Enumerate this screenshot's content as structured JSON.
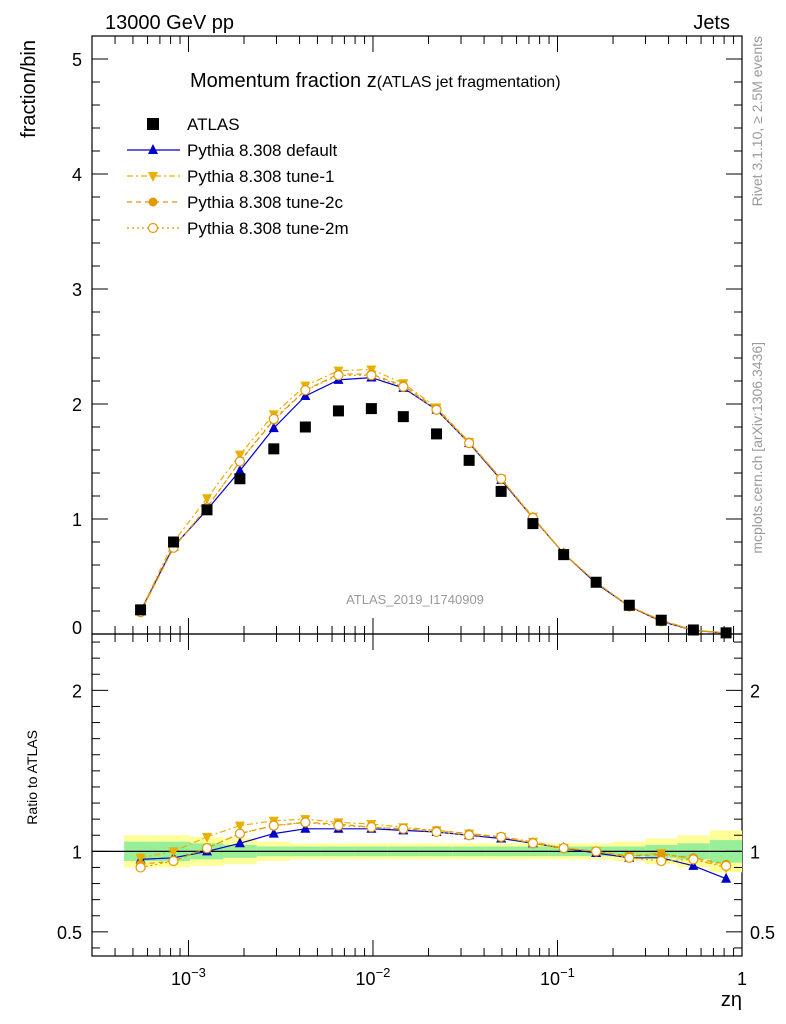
{
  "header": {
    "left": "13000 GeV pp",
    "right": "Jets"
  },
  "side_text": {
    "rivet": "Rivet 3.1.10, ≥ 2.5M events",
    "mcplots": "mcplots.cern.ch [arXiv:1306.3436]"
  },
  "chart_data": {
    "type": "scatter",
    "title_main": "Momentum fraction z",
    "title_sub": "(ATLAS jet fragmentation)",
    "analysis_label": "ATLAS_2019_I1740909",
    "xlabel": "zη",
    "xscale": "log",
    "xlim": [
      0.0003,
      1
    ],
    "x_tick_labels": [
      "10^-3",
      "10^-2",
      "10^-1",
      "1"
    ],
    "main_panel": {
      "ylabel": "fraction/bin",
      "ylim": [
        0,
        5.2
      ],
      "y_tick_labels": [
        "0",
        "1",
        "2",
        "3",
        "4",
        "5"
      ]
    },
    "ratio_panel": {
      "ylabel": "Ratio to ATLAS",
      "ylim": [
        0.35,
        2.35
      ],
      "y_tick_labels": [
        "0.5",
        "1",
        "2"
      ]
    },
    "x": [
      0.00055,
      0.00083,
      0.00126,
      0.0019,
      0.0029,
      0.0043,
      0.0065,
      0.0098,
      0.0146,
      0.0221,
      0.0332,
      0.0495,
      0.0736,
      0.108,
      0.162,
      0.245,
      0.365,
      0.545,
      0.82
    ],
    "series": [
      {
        "name": "ATLAS",
        "color": "#000000",
        "marker": "square",
        "values": [
          0.21,
          0.8,
          1.08,
          1.35,
          1.61,
          1.8,
          1.94,
          1.96,
          1.89,
          1.74,
          1.51,
          1.24,
          0.96,
          0.69,
          0.45,
          0.25,
          0.12,
          0.035,
          0.01
        ],
        "ratio_band_inner": [
          0.06,
          0.06,
          0.05,
          0.04,
          0.03,
          0.03,
          0.03,
          0.03,
          0.03,
          0.03,
          0.03,
          0.03,
          0.03,
          0.03,
          0.03,
          0.03,
          0.04,
          0.05,
          0.07
        ],
        "ratio_band_outer": [
          0.1,
          0.1,
          0.09,
          0.08,
          0.06,
          0.05,
          0.05,
          0.05,
          0.05,
          0.05,
          0.05,
          0.05,
          0.05,
          0.05,
          0.05,
          0.06,
          0.08,
          0.1,
          0.13
        ]
      },
      {
        "name": "Pythia 8.308 default",
        "color": "#0000cc",
        "marker": "triangle-up",
        "dash": "",
        "values": [
          0.2,
          0.76,
          1.08,
          1.42,
          1.79,
          2.07,
          2.21,
          2.23,
          2.14,
          1.95,
          1.66,
          1.34,
          1.01,
          0.7,
          0.44,
          0.24,
          0.11,
          0.032,
          0.008
        ],
        "ratio": [
          0.95,
          0.96,
          1.0,
          1.05,
          1.11,
          1.14,
          1.14,
          1.14,
          1.13,
          1.12,
          1.1,
          1.08,
          1.05,
          1.02,
          0.99,
          0.96,
          0.96,
          0.91,
          0.83
        ]
      },
      {
        "name": "Pythia 8.308 tune-1",
        "color": "#e8b000",
        "marker": "triangle-down",
        "dash": "6,3,2,3",
        "values": [
          0.2,
          0.8,
          1.18,
          1.56,
          1.91,
          2.16,
          2.29,
          2.3,
          2.18,
          1.97,
          1.67,
          1.35,
          1.02,
          0.7,
          0.45,
          0.24,
          0.12,
          0.033,
          0.009
        ],
        "ratio": [
          0.96,
          1.0,
          1.09,
          1.16,
          1.19,
          1.2,
          1.18,
          1.17,
          1.15,
          1.13,
          1.11,
          1.09,
          1.06,
          1.02,
          1.0,
          0.97,
          0.99,
          0.95,
          0.9
        ]
      },
      {
        "name": "Pythia 8.308 tune-2c",
        "color": "#e39800",
        "marker": "circle",
        "dash": "5,4",
        "values": [
          0.19,
          0.75,
          1.1,
          1.5,
          1.86,
          2.12,
          2.26,
          2.26,
          2.16,
          1.96,
          1.67,
          1.35,
          1.01,
          0.7,
          0.45,
          0.24,
          0.12,
          0.033,
          0.009
        ],
        "ratio": [
          0.92,
          0.94,
          1.02,
          1.11,
          1.16,
          1.18,
          1.17,
          1.15,
          1.14,
          1.13,
          1.11,
          1.09,
          1.05,
          1.02,
          1.0,
          0.97,
          0.98,
          0.96,
          0.92
        ]
      },
      {
        "name": "Pythia 8.308 tune-2m",
        "color": "#e39800",
        "marker": "circle-open",
        "dash": "2,3",
        "values": [
          0.19,
          0.75,
          1.1,
          1.5,
          1.87,
          2.12,
          2.25,
          2.25,
          2.15,
          1.95,
          1.66,
          1.35,
          1.01,
          0.7,
          0.45,
          0.24,
          0.11,
          0.032,
          0.009
        ],
        "ratio": [
          0.9,
          0.94,
          1.02,
          1.11,
          1.16,
          1.18,
          1.16,
          1.15,
          1.14,
          1.12,
          1.1,
          1.09,
          1.05,
          1.02,
          1.0,
          0.96,
          0.94,
          0.95,
          0.91
        ]
      }
    ]
  }
}
